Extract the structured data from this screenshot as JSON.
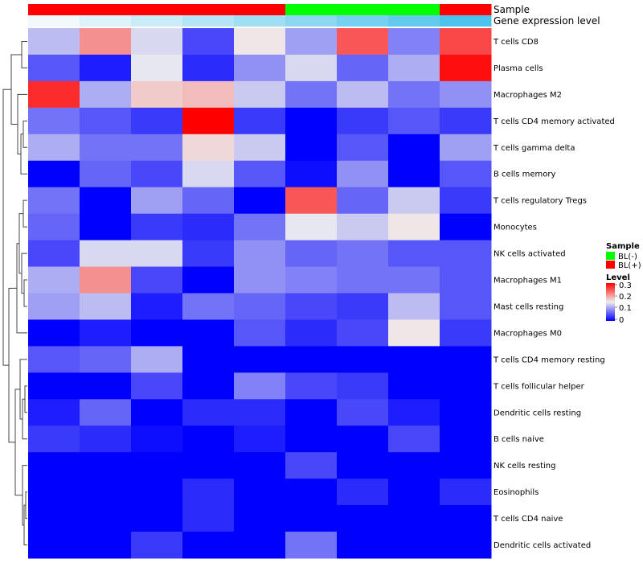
{
  "chart_data": {
    "type": "heatmap",
    "column_annotations": [
      {
        "name": "Sample",
        "values": [
          "BL(+)",
          "BL(+)",
          "BL(+)",
          "BL(+)",
          "BL(+)",
          "BL(-)",
          "BL(-)",
          "BL(-)",
          "BL(+)"
        ]
      },
      {
        "name": "Gene expression level",
        "values": [
          0.05,
          0.07,
          0.09,
          0.11,
          0.13,
          0.15,
          0.17,
          0.19,
          0.21
        ]
      }
    ],
    "rows": [
      "T cells CD8",
      "Plasma cells",
      "Macrophages M2",
      "T cells CD4 memory activated",
      "T cells gamma delta",
      "B cells memory",
      "T cells regulatory  Tregs",
      "Monocytes",
      "NK cells activated",
      "Macrophages M1",
      "Mast cells resting",
      "Macrophages M0",
      "T cells CD4 memory resting",
      "T cells follicular helper",
      "Dendritic cells resting",
      "B cells naive",
      "NK cells resting",
      "Eosinophils",
      "T cells CD4 naive",
      "Dendritic cells activated"
    ],
    "values": [
      [
        0.13,
        0.23,
        0.15,
        0.05,
        0.17,
        0.11,
        0.27,
        0.09,
        0.28
      ],
      [
        0.06,
        0.02,
        0.16,
        0.03,
        0.1,
        0.15,
        0.07,
        0.12,
        0.32
      ],
      [
        0.3,
        0.12,
        0.19,
        0.2,
        0.14,
        0.08,
        0.13,
        0.08,
        0.1
      ],
      [
        0.08,
        0.06,
        0.04,
        0.33,
        0.04,
        0.0,
        0.04,
        0.06,
        0.04
      ],
      [
        0.12,
        0.08,
        0.08,
        0.18,
        0.14,
        0.0,
        0.06,
        0.0,
        0.11
      ],
      [
        0.0,
        0.07,
        0.05,
        0.15,
        0.06,
        0.01,
        0.1,
        0.0,
        0.06
      ],
      [
        0.08,
        0.0,
        0.11,
        0.07,
        0.0,
        0.27,
        0.07,
        0.14,
        0.04
      ],
      [
        0.07,
        0.0,
        0.04,
        0.03,
        0.08,
        0.16,
        0.14,
        0.17,
        0.0
      ],
      [
        0.05,
        0.15,
        0.15,
        0.04,
        0.1,
        0.07,
        0.08,
        0.06,
        0.06
      ],
      [
        0.12,
        0.23,
        0.05,
        0.0,
        0.1,
        0.09,
        0.08,
        0.08,
        0.06
      ],
      [
        0.11,
        0.13,
        0.02,
        0.08,
        0.07,
        0.05,
        0.04,
        0.13,
        0.06
      ],
      [
        0.0,
        0.02,
        0.0,
        0.0,
        0.06,
        0.03,
        0.05,
        0.17,
        0.04
      ],
      [
        0.06,
        0.07,
        0.12,
        0.0,
        0.0,
        0.0,
        0.0,
        0.0,
        0.0
      ],
      [
        0.0,
        0.0,
        0.05,
        0.0,
        0.09,
        0.05,
        0.04,
        0.0,
        0.0
      ],
      [
        0.02,
        0.07,
        0.0,
        0.03,
        0.03,
        0.0,
        0.05,
        0.02,
        0.0
      ],
      [
        0.04,
        0.03,
        0.01,
        0.0,
        0.02,
        0.0,
        0.0,
        0.05,
        0.0
      ],
      [
        0.0,
        0.0,
        0.0,
        0.0,
        0.0,
        0.05,
        0.0,
        0.0,
        0.0
      ],
      [
        0.0,
        0.0,
        0.0,
        0.03,
        0.0,
        0.0,
        0.03,
        0.0,
        0.03
      ],
      [
        0.0,
        0.0,
        0.0,
        0.03,
        0.0,
        0.0,
        0.0,
        0.0,
        0.0
      ],
      [
        0.0,
        0.0,
        0.04,
        0.0,
        0.0,
        0.08,
        0.0,
        0.0,
        0.0
      ]
    ],
    "color_scale": {
      "min": 0,
      "mid": 0.165,
      "max": 0.33,
      "low_color": "#0000ff",
      "mid_color": "#eeeeee",
      "high_color": "#ff0000"
    },
    "gene_level_scale": {
      "low_color": "#f2f9fc",
      "high_color": "#4dc3ec"
    },
    "row_dendrogram": true,
    "legend": {
      "placement": "right",
      "sample": {
        "title": "Sample",
        "items": [
          {
            "label": "BL(-)",
            "color": "#00ff00"
          },
          {
            "label": "BL(+)",
            "color": "#ff0000"
          }
        ]
      },
      "level": {
        "title": "Level",
        "ticks": [
          "0.3",
          "0.2",
          "0.1",
          "0"
        ]
      }
    }
  }
}
